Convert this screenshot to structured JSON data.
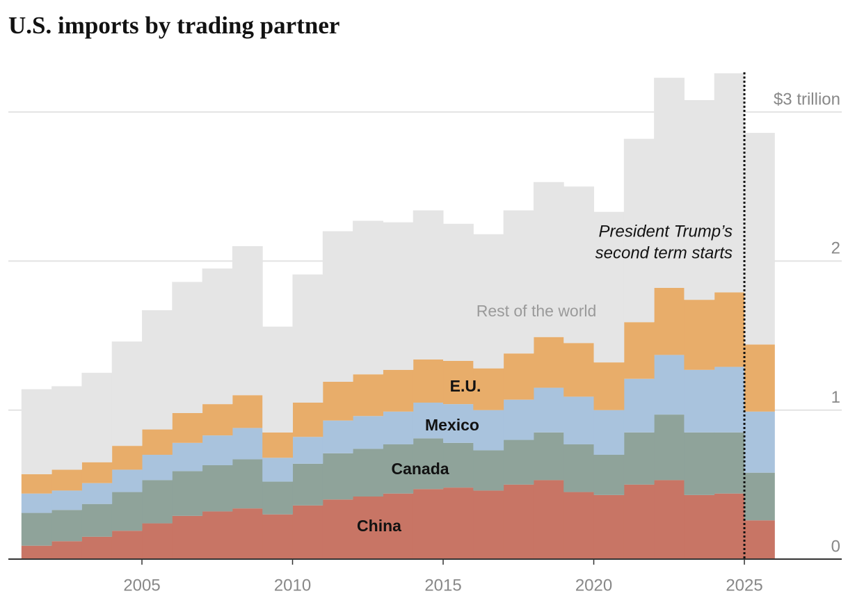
{
  "chart_data": {
    "type": "stepped-area",
    "title": "U.S. imports by trading partner",
    "x": [
      2001,
      2002,
      2003,
      2004,
      2005,
      2006,
      2007,
      2008,
      2009,
      2010,
      2011,
      2012,
      2013,
      2014,
      2015,
      2016,
      2017,
      2018,
      2019,
      2020,
      2021,
      2022,
      2023,
      2024,
      2025
    ],
    "series": [
      {
        "name": "China",
        "color": "#c87565",
        "values": [
          0.09,
          0.12,
          0.15,
          0.19,
          0.24,
          0.29,
          0.32,
          0.34,
          0.3,
          0.36,
          0.4,
          0.42,
          0.44,
          0.47,
          0.48,
          0.46,
          0.5,
          0.53,
          0.45,
          0.43,
          0.5,
          0.53,
          0.43,
          0.44,
          0.26
        ]
      },
      {
        "name": "Canada",
        "color": "#8fa39a",
        "values": [
          0.22,
          0.21,
          0.22,
          0.26,
          0.29,
          0.3,
          0.31,
          0.33,
          0.22,
          0.28,
          0.31,
          0.32,
          0.33,
          0.34,
          0.3,
          0.27,
          0.3,
          0.32,
          0.32,
          0.27,
          0.35,
          0.44,
          0.42,
          0.41,
          0.32
        ]
      },
      {
        "name": "Mexico",
        "color": "#a9c3dd",
        "values": [
          0.13,
          0.13,
          0.14,
          0.15,
          0.17,
          0.19,
          0.2,
          0.21,
          0.16,
          0.18,
          0.22,
          0.22,
          0.22,
          0.24,
          0.26,
          0.27,
          0.27,
          0.3,
          0.32,
          0.3,
          0.36,
          0.4,
          0.42,
          0.44,
          0.41
        ]
      },
      {
        "name": "E.U.",
        "color": "#e8ad6a",
        "values": [
          0.13,
          0.14,
          0.14,
          0.16,
          0.17,
          0.2,
          0.21,
          0.22,
          0.17,
          0.23,
          0.26,
          0.28,
          0.28,
          0.29,
          0.29,
          0.28,
          0.31,
          0.34,
          0.36,
          0.32,
          0.38,
          0.45,
          0.47,
          0.5,
          0.45
        ]
      },
      {
        "name": "Rest of the world",
        "color": "#e5e5e5",
        "values": [
          0.57,
          0.56,
          0.6,
          0.7,
          0.8,
          0.88,
          0.91,
          1.0,
          0.71,
          0.86,
          1.01,
          1.03,
          0.99,
          1.0,
          0.92,
          0.9,
          0.96,
          1.04,
          1.05,
          1.01,
          1.23,
          1.41,
          1.34,
          1.47,
          1.42
        ]
      }
    ],
    "stacked": true,
    "xlim": [
      2000.6,
      2028.2
    ],
    "xticks": [
      2005,
      2010,
      2015,
      2020,
      2025
    ],
    "ylim": [
      0,
      3.3
    ],
    "yticks": [
      0,
      1,
      2,
      {
        "value": 3,
        "label": "$3 trillion"
      }
    ],
    "grid": true,
    "annotation": {
      "x": 2025,
      "text": [
        "President Trump’s",
        "second term starts"
      ]
    }
  }
}
